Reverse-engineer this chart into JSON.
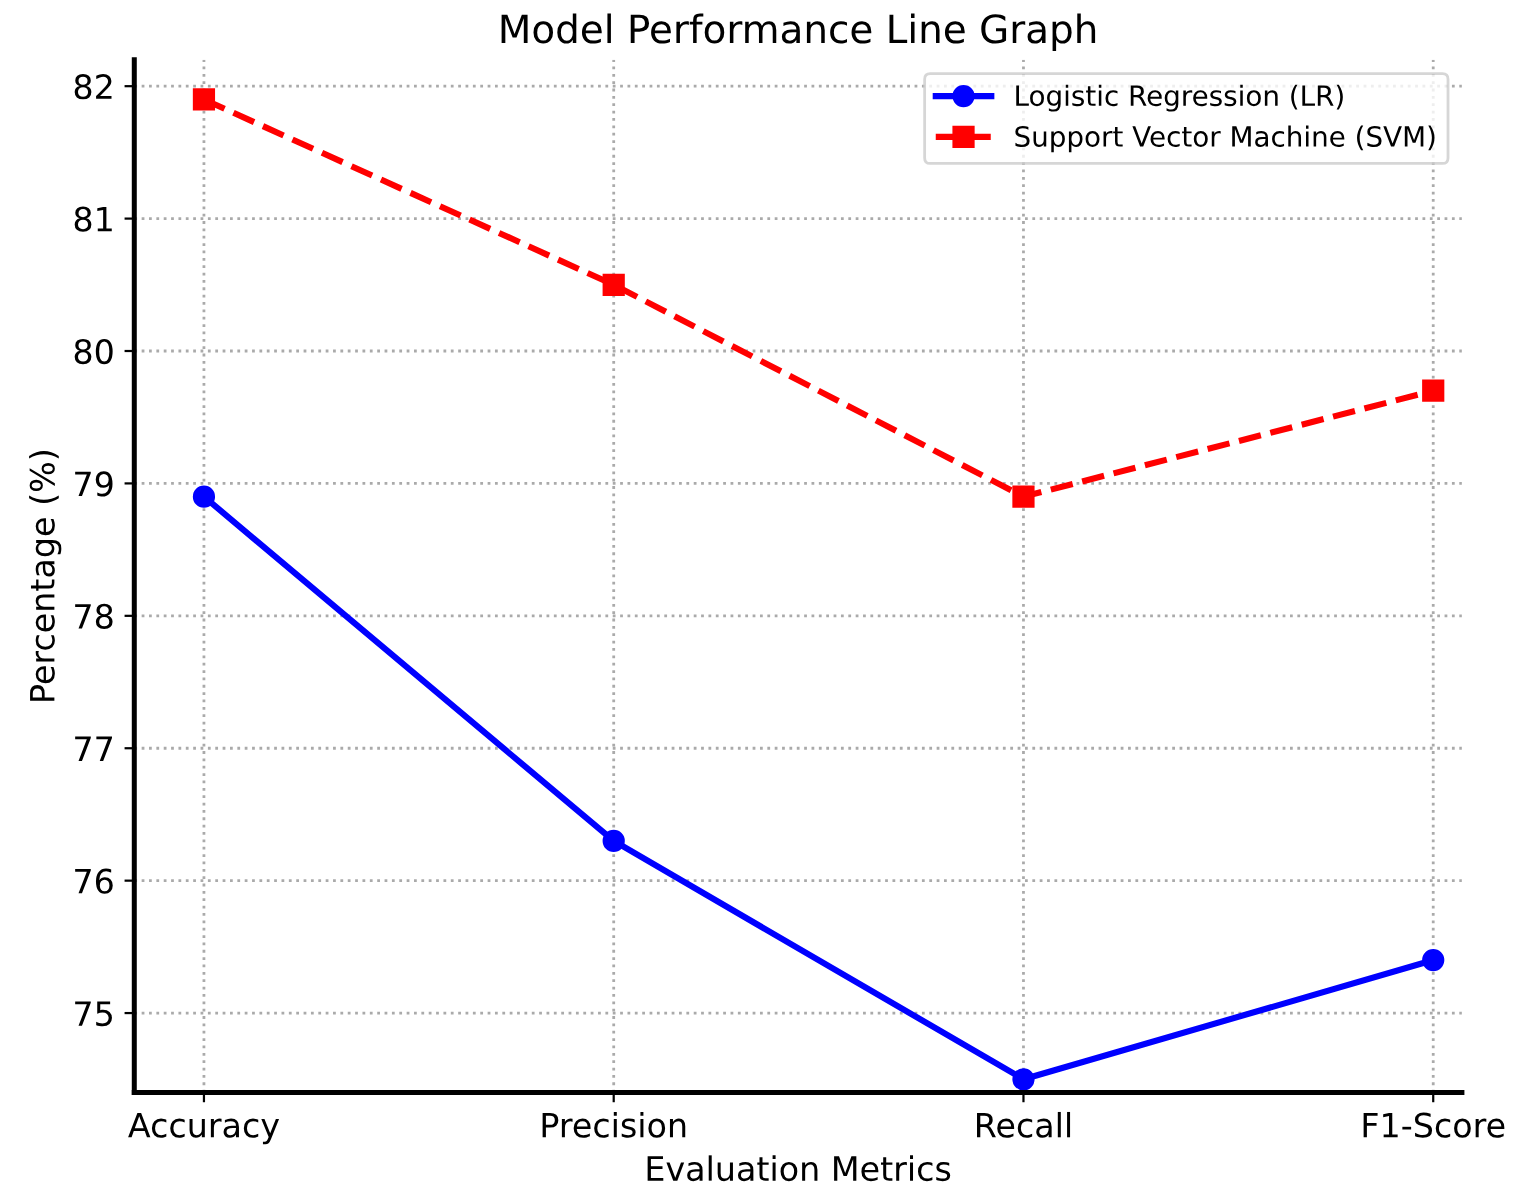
{
  "chart_data": {
    "type": "line",
    "title": "Model Performance Line Graph",
    "xlabel": "Evaluation Metrics",
    "ylabel": "Percentage (%)",
    "categories": [
      "Accuracy",
      "Precision",
      "Recall",
      "F1-Score"
    ],
    "series": [
      {
        "name": "Logistic Regression (LR)",
        "color": "#0000ff",
        "values": [
          78.9,
          76.3,
          74.5,
          75.4
        ],
        "marker": "circle",
        "line_style": "solid"
      },
      {
        "name": "Support Vector Machine (SVM)",
        "color": "#ff0000",
        "values": [
          81.9,
          80.5,
          78.9,
          79.7
        ],
        "marker": "square",
        "line_style": "dashed"
      }
    ],
    "ylim": [
      74.4,
      82.2
    ],
    "yticks": [
      75,
      76,
      77,
      78,
      79,
      80,
      81,
      82
    ],
    "grid": true,
    "legend": "top right"
  }
}
